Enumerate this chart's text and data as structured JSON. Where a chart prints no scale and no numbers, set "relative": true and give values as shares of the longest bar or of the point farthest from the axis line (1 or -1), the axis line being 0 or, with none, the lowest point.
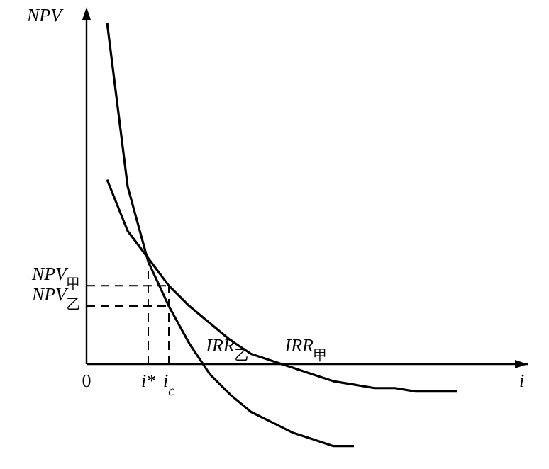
{
  "chart_data": {
    "type": "line",
    "relative": true,
    "xlabel": "i",
    "ylabel": "NPV",
    "categories": [
      "0",
      null,
      null,
      "i*",
      "i$_{c}$",
      null,
      null,
      null,
      null,
      null,
      null,
      null,
      null,
      null,
      null,
      null,
      null,
      null,
      null,
      null,
      null
    ],
    "series": [
      {
        "color": "#000000",
        "values": [
          null,
          1.0,
          0.52,
          0.3,
          0.17,
          0.06,
          -0.03,
          -0.09,
          -0.14,
          -0.17,
          -0.2,
          -0.22,
          -0.24,
          -0.24,
          null,
          null,
          null,
          null,
          null,
          null,
          null
        ]
      },
      {
        "color": "#000000",
        "values": [
          null,
          0.54,
          0.39,
          0.31,
          0.23,
          0.17,
          0.12,
          0.07,
          0.03,
          0.01,
          -0.01,
          -0.03,
          -0.05,
          -0.06,
          -0.07,
          -0.07,
          -0.08,
          -0.08,
          -0.08,
          null,
          null
        ]
      }
    ],
    "ref_lines": [
      {
        "axis": "y",
        "value": 0.23,
        "label": "NPV$_{甲}$",
        "line_style": "dashed"
      },
      {
        "axis": "y",
        "value": 0.17,
        "label": "NPV$_{乙}$",
        "line_style": "dashed"
      },
      {
        "axis": "x",
        "value": "i*",
        "line_style": "dashed"
      },
      {
        "axis": "x",
        "value": "i$_{c}$",
        "line_style": "dashed"
      }
    ],
    "annotations": [
      "IRR$_{乙}$",
      "IRR$_{甲}$"
    ],
    "marker": "none",
    "line_style": "solid"
  }
}
